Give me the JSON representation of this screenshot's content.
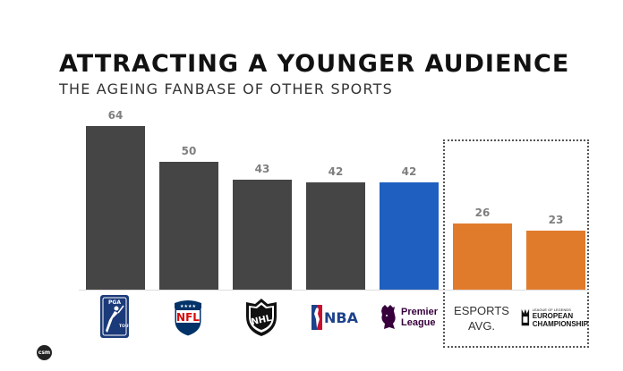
{
  "title": "ATTRACTING A YOUNGER AUDIENCE",
  "subtitle": "THE AGEING FANBASE OF OTHER SPORTS",
  "chart_data": {
    "type": "bar",
    "title": "ATTRACTING A YOUNGER AUDIENCE",
    "subtitle": "THE AGEING FANBASE OF OTHER SPORTS",
    "xlabel": "",
    "ylabel": "",
    "ylim": [
      0,
      64
    ],
    "grid": false,
    "categories": [
      "PGA TOUR",
      "NFL",
      "NHL",
      "NBA",
      "Premier League",
      "ESPORTS AVG.",
      "EUROPEAN CHAMPIONSHIP"
    ],
    "values": [
      64,
      50,
      43,
      42,
      42,
      26,
      23
    ],
    "colors": [
      "#454545",
      "#454545",
      "#454545",
      "#454545",
      "#1f5fbf",
      "#e07b2c",
      "#e07b2c"
    ],
    "annotations": [
      "dotted box groups esports bars"
    ]
  },
  "logos": {
    "pga": {
      "line1": "PGA",
      "line2": "TOUR"
    },
    "nfl": {
      "text": "NFL"
    },
    "nhl": {
      "text": "NHL"
    },
    "nba": {
      "text": "NBA"
    },
    "premier_league": {
      "line1": "Premier",
      "line2": "League"
    },
    "esports": {
      "line1": "ESPORTS",
      "line2": "AVG."
    },
    "lec": {
      "top": "LEAGUE OF LEGENDS",
      "line1": "EUROPEAN",
      "line2": "CHAMPIONSHIP"
    }
  },
  "brand": {
    "text": "csm"
  }
}
